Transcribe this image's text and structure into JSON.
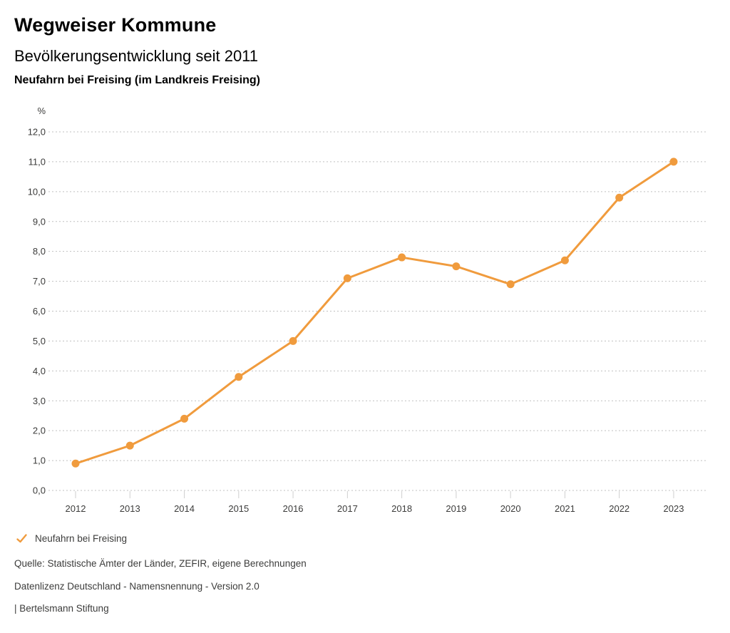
{
  "header": {
    "title": "Wegweiser Kommune",
    "subtitle": "Bevölkerungsentwicklung seit 2011",
    "region": "Neufahrn bei Freising (im Landkreis Freising)"
  },
  "chart_data": {
    "type": "line",
    "title": "Bevölkerungsentwicklung seit 2011",
    "subtitle": "Neufahrn bei Freising (im Landkreis Freising)",
    "unit_label": "%",
    "categories": [
      "2012",
      "2013",
      "2014",
      "2015",
      "2016",
      "2017",
      "2018",
      "2019",
      "2020",
      "2021",
      "2022",
      "2023"
    ],
    "series": [
      {
        "name": "Neufahrn bei Freising",
        "color": "#f09b3d",
        "values": [
          0.9,
          1.5,
          2.4,
          3.8,
          5.0,
          7.1,
          7.8,
          7.5,
          6.9,
          7.7,
          9.8,
          11.0
        ]
      }
    ],
    "ylim": [
      0.0,
      12.0
    ],
    "ytick_step": 1.0,
    "decimal_separator": ",",
    "grid": "horizontal-dotted",
    "legend_position": "bottom-left"
  },
  "legend": {
    "items": [
      {
        "label": "Neufahrn bei Freising",
        "color": "#f09b3d",
        "checked": true
      }
    ]
  },
  "footer": {
    "source": "Quelle: Statistische Ämter der Länder, ZEFIR, eigene Berechnungen",
    "license": "Datenlizenz Deutschland - Namensnennung - Version 2.0",
    "attribution": "| Bertelsmann Stiftung"
  },
  "colors": {
    "accent": "#f09b3d",
    "grid": "#c0c0c0",
    "tick": "#cfcfcf",
    "axis_text": "#3c3c3b"
  }
}
